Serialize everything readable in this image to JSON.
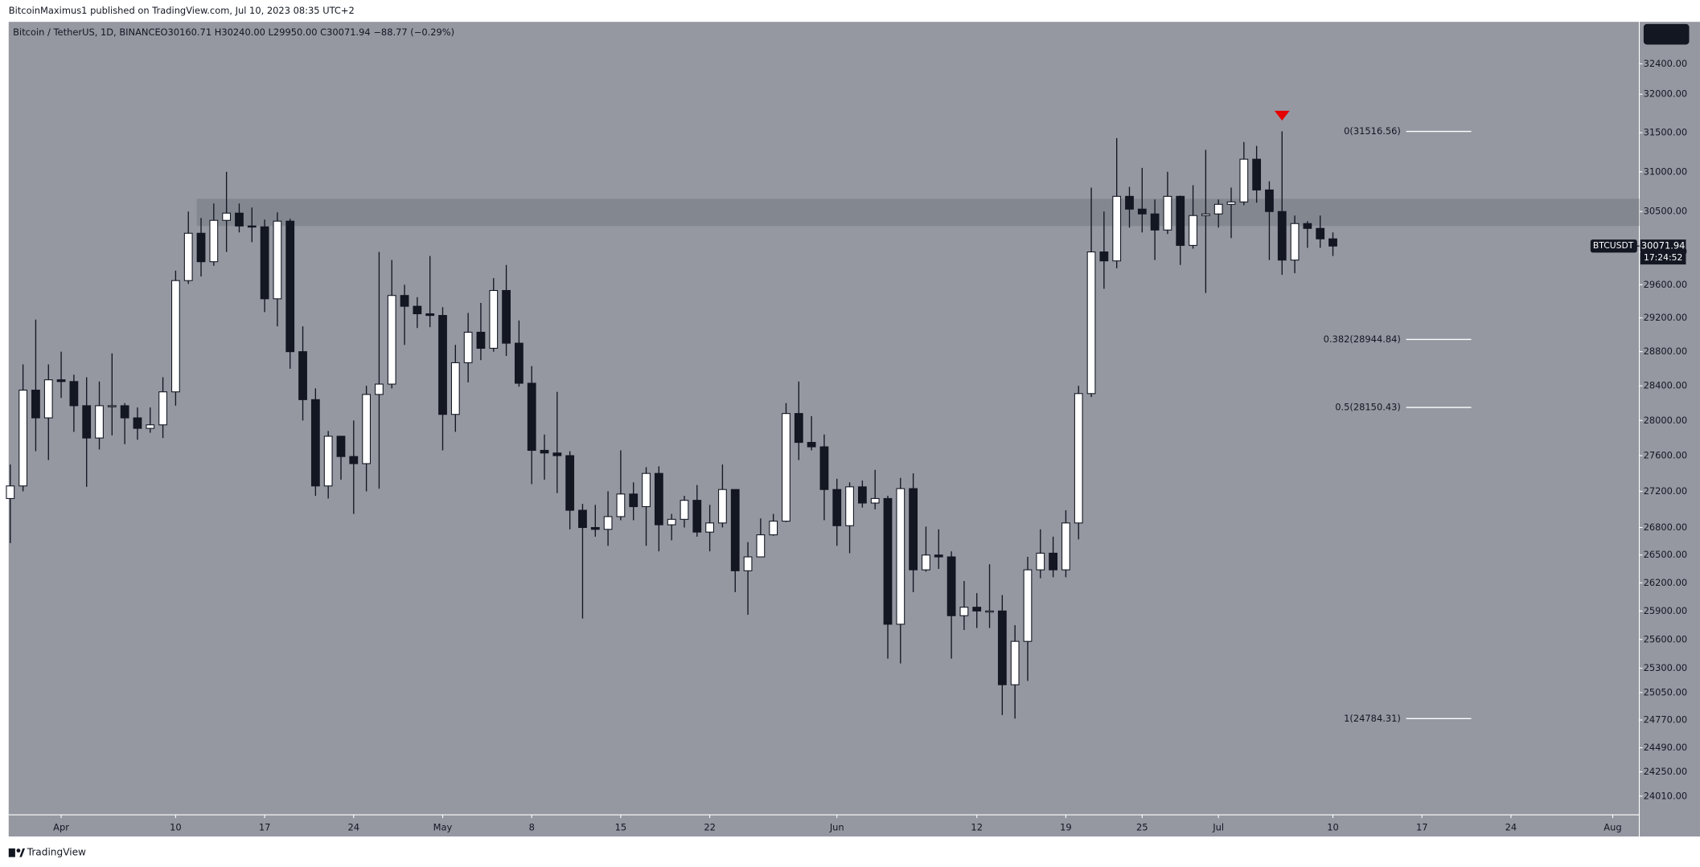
{
  "top_bar": "BitcoinMaximus1 published on TradingView.com, Jul 10, 2023 08:35 UTC+2",
  "footer": "TradingView",
  "chart_data": {
    "type": "candlestick",
    "title": "Bitcoin / TetherUS, 1D, BINANCE",
    "ohlc_label": "O30160.71 H30240.00 L29950.00 C30071.94 −88.77 (−0.29%)",
    "symbol": "BTCUSDT",
    "countdown": "17:24:52",
    "log_scale": true,
    "categories": [
      "Mar 28",
      "Mar 29",
      "Mar 30",
      "Mar 31",
      "Apr 1",
      "Apr 2",
      "Apr 3",
      "Apr 4",
      "Apr 5",
      "Apr 6",
      "Apr 7",
      "Apr 8",
      "Apr 9",
      "Apr 10",
      "Apr 11",
      "Apr 12",
      "Apr 13",
      "Apr 14",
      "Apr 15",
      "Apr 16",
      "Apr 17",
      "Apr 18",
      "Apr 19",
      "Apr 20",
      "Apr 21",
      "Apr 22",
      "Apr 23",
      "Apr 24",
      "Apr 25",
      "Apr 26",
      "Apr 27",
      "Apr 28",
      "Apr 29",
      "Apr 30",
      "May 1",
      "May 2",
      "May 3",
      "May 4",
      "May 5",
      "May 6",
      "May 7",
      "May 8",
      "May 9",
      "May 10",
      "May 11",
      "May 12",
      "May 13",
      "May 14",
      "May 15",
      "May 16",
      "May 17",
      "May 18",
      "May 19",
      "May 20",
      "May 21",
      "May 22",
      "May 23",
      "May 24",
      "May 25",
      "May 26",
      "May 27",
      "May 28",
      "May 29",
      "May 30",
      "May 31",
      "Jun 1",
      "Jun 2",
      "Jun 3",
      "Jun 4",
      "Jun 5",
      "Jun 6",
      "Jun 7",
      "Jun 8",
      "Jun 9",
      "Jun 10",
      "Jun 11",
      "Jun 12",
      "Jun 13",
      "Jun 14",
      "Jun 15",
      "Jun 16",
      "Jun 17",
      "Jun 18",
      "Jun 19",
      "Jun 20",
      "Jun 21",
      "Jun 22",
      "Jun 23",
      "Jun 24",
      "Jun 25",
      "Jun 26",
      "Jun 27",
      "Jun 28",
      "Jun 29",
      "Jun 30",
      "Jul 1",
      "Jul 2",
      "Jul 3",
      "Jul 4",
      "Jul 5",
      "Jul 6",
      "Jul 7",
      "Jul 8",
      "Jul 9",
      "Jul 10"
    ],
    "open": [
      27120,
      27260,
      28350,
      28030,
      28470,
      28450,
      28170,
      27800,
      28170,
      28170,
      28030,
      27910,
      27950,
      28330,
      29650,
      30230,
      29880,
      30390,
      30480,
      30320,
      30310,
      29430,
      30380,
      28800,
      28240,
      27260,
      27820,
      27590,
      27510,
      28300,
      28420,
      29470,
      29340,
      29250,
      29230,
      28070,
      28670,
      29030,
      28840,
      29530,
      28900,
      28430,
      27660,
      27630,
      27600,
      26990,
      26800,
      26780,
      26920,
      27170,
      27030,
      27400,
      26830,
      26890,
      27100,
      26750,
      26850,
      27220,
      26330,
      26480,
      26720,
      26870,
      28080,
      27750,
      27700,
      27220,
      26820,
      27250,
      27070,
      27120,
      25760,
      27230,
      26340,
      26500,
      26480,
      25850,
      25940,
      25900,
      25900,
      25130,
      25580,
      26340,
      26520,
      26340,
      26850,
      28310,
      30000,
      29890,
      30690,
      30530,
      30470,
      30270,
      30690,
      30080,
      30450,
      30470,
      30590,
      30620,
      31160,
      30770,
      30500,
      29900,
      30350,
      30290,
      30160.71
    ],
    "high": [
      27500,
      28650,
      29180,
      28650,
      28800,
      28530,
      28500,
      28450,
      28780,
      28200,
      28150,
      28150,
      28500,
      29770,
      30500,
      30420,
      30600,
      31000,
      30600,
      30550,
      30400,
      30490,
      30410,
      29100,
      28370,
      27880,
      27820,
      28000,
      28400,
      30000,
      29900,
      29600,
      29450,
      29950,
      29330,
      28880,
      29260,
      29380,
      29680,
      29840,
      29170,
      28630,
      27840,
      28330,
      27650,
      27060,
      27050,
      27200,
      27660,
      27300,
      27470,
      27480,
      26950,
      27150,
      27270,
      27050,
      27500,
      27220,
      26640,
      26900,
      26950,
      28200,
      28450,
      28050,
      27840,
      27340,
      27300,
      27320,
      27440,
      27150,
      27350,
      27400,
      26810,
      26780,
      26540,
      26220,
      26090,
      26400,
      26070,
      25750,
      26480,
      26780,
      26700,
      26990,
      28400,
      30800,
      30500,
      31430,
      30810,
      31050,
      30650,
      31000,
      30700,
      30830,
      31280,
      30650,
      30800,
      31380,
      31330,
      30880,
      31516.56,
      30450,
      30380,
      30450,
      30240
    ],
    "low": [
      26630,
      27200,
      27650,
      27550,
      28260,
      27870,
      27250,
      27670,
      27830,
      27730,
      27780,
      27860,
      27800,
      28170,
      29610,
      29700,
      29830,
      30000,
      30240,
      30120,
      29270,
      29100,
      28600,
      28000,
      27150,
      27120,
      27330,
      26950,
      27200,
      27230,
      28370,
      28880,
      29080,
      29090,
      27660,
      27870,
      28440,
      28700,
      28800,
      28750,
      28390,
      27280,
      27330,
      27180,
      26780,
      25820,
      26700,
      26600,
      26880,
      26880,
      26600,
      26540,
      26660,
      26800,
      26700,
      26540,
      26800,
      26100,
      25860,
      26500,
      26710,
      26860,
      27550,
      27660,
      26880,
      26600,
      26520,
      27020,
      27000,
      25400,
      25350,
      26100,
      26320,
      26350,
      25400,
      25700,
      25720,
      25720,
      24820,
      24784.31,
      25170,
      26250,
      26260,
      26260,
      26670,
      28270,
      29550,
      29800,
      30300,
      30240,
      29900,
      30220,
      29840,
      30040,
      29500,
      30300,
      30170,
      30580,
      30610,
      29900,
      29720,
      29740,
      30050,
      30050,
      29950
    ],
    "close": [
      27260,
      28350,
      28030,
      28470,
      28450,
      28170,
      27800,
      28170,
      28170,
      28030,
      27910,
      27950,
      28330,
      29650,
      30230,
      29880,
      30390,
      30480,
      30320,
      30310,
      29430,
      30380,
      28800,
      28240,
      27260,
      27820,
      27590,
      27510,
      28300,
      28420,
      29470,
      29340,
      29250,
      29230,
      28070,
      28670,
      29030,
      28840,
      29530,
      28900,
      28430,
      27660,
      27630,
      27600,
      26990,
      26800,
      26780,
      26920,
      27170,
      27030,
      27400,
      26830,
      26890,
      27100,
      26750,
      26850,
      27220,
      26330,
      26480,
      26720,
      26870,
      28080,
      27750,
      27700,
      27220,
      26820,
      27250,
      27070,
      27120,
      25760,
      27230,
      26340,
      26500,
      26480,
      25850,
      25940,
      25900,
      25900,
      25130,
      25580,
      26340,
      26520,
      26340,
      26850,
      28310,
      30000,
      29890,
      30690,
      30530,
      30470,
      30270,
      30690,
      30080,
      30450,
      30470,
      30590,
      30620,
      31160,
      30770,
      30500,
      29900,
      30350,
      30290,
      30160.71,
      30071.94
    ],
    "up_color": "#ffffff",
    "down_color": "#131722",
    "ylim": [
      23827,
      32962
    ],
    "yticks": [
      {
        "value": 32400,
        "label": "32400.00"
      },
      {
        "value": 32000,
        "label": "32000.00"
      },
      {
        "value": 31500,
        "label": "31500.00"
      },
      {
        "value": 31000,
        "label": "31000.00"
      },
      {
        "value": 30500,
        "label": "30500.00"
      },
      {
        "value": 30000,
        "label": "30000.00"
      },
      {
        "value": 29600,
        "label": "29600.00"
      },
      {
        "value": 29200,
        "label": "29200.00"
      },
      {
        "value": 28800,
        "label": "28800.00"
      },
      {
        "value": 28400,
        "label": "28400.00"
      },
      {
        "value": 28000,
        "label": "28000.00"
      },
      {
        "value": 27600,
        "label": "27600.00"
      },
      {
        "value": 27200,
        "label": "27200.00"
      },
      {
        "value": 26800,
        "label": "26800.00"
      },
      {
        "value": 26500,
        "label": "26500.00"
      },
      {
        "value": 26200,
        "label": "26200.00"
      },
      {
        "value": 25900,
        "label": "25900.00"
      },
      {
        "value": 25600,
        "label": "25600.00"
      },
      {
        "value": 25300,
        "label": "25300.00"
      },
      {
        "value": 25050,
        "label": "25050.00"
      },
      {
        "value": 24770,
        "label": "24770.00"
      },
      {
        "value": 24490,
        "label": "24490.00"
      },
      {
        "value": 24250,
        "label": "24250.00"
      },
      {
        "value": 24010,
        "label": "24010.00"
      }
    ],
    "xticks": [
      {
        "value": "Apr 1",
        "label": "Apr"
      },
      {
        "value": "Apr 10",
        "label": "10"
      },
      {
        "value": "Apr 17",
        "label": "17"
      },
      {
        "value": "Apr 24",
        "label": "24"
      },
      {
        "value": "May 1",
        "label": "May"
      },
      {
        "value": "May 8",
        "label": "8"
      },
      {
        "value": "May 15",
        "label": "15"
      },
      {
        "value": "May 22",
        "label": "22"
      },
      {
        "value": "Jun 1",
        "label": "Jun"
      },
      {
        "value": "Jun 12",
        "label": "12"
      },
      {
        "value": "Jun 19",
        "label": "19"
      },
      {
        "value": "Jun 25",
        "label": "25"
      },
      {
        "value": "Jul 1",
        "label": "Jul"
      },
      {
        "value": "Jul 10",
        "label": "10"
      },
      {
        "value": "Jul 17",
        "label": "17"
      },
      {
        "value": "Jul 24",
        "label": "24"
      },
      {
        "value": "Aug 1",
        "label": "Aug"
      }
    ],
    "fib": [
      {
        "label": "0(31516.56)",
        "value": 31516.56
      },
      {
        "label": "0.382(28944.84)",
        "value": 28944.84
      },
      {
        "label": "0.5(28150.43)",
        "value": 28150.43
      },
      {
        "label": "1(24784.31)",
        "value": 24784.31
      }
    ],
    "zone": {
      "from": "Apr 12",
      "low": 30320,
      "high": 30660
    }
  }
}
